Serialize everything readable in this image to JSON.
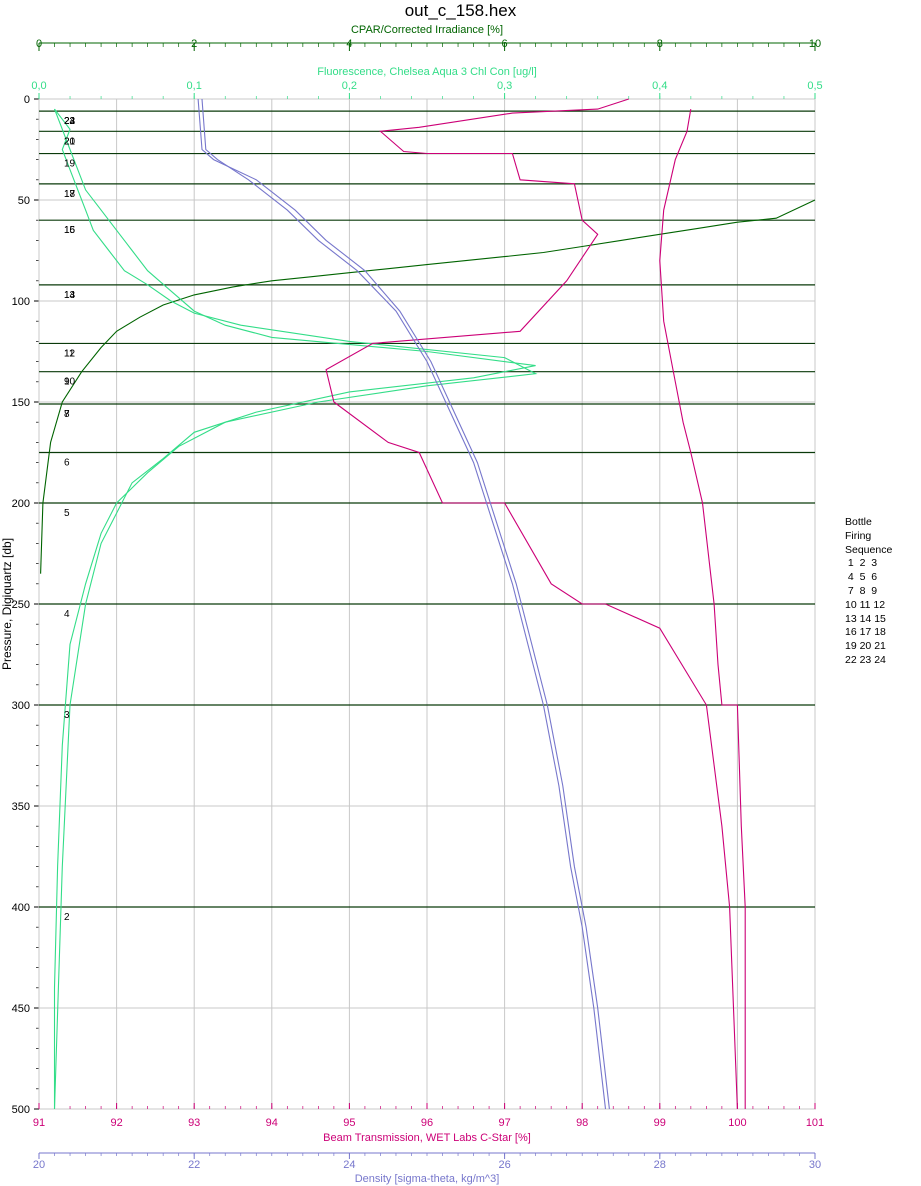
{
  "title": "out_c_158.hex",
  "chart_data": {
    "type": "line",
    "title": "out_c_158.hex",
    "ylabel": "Pressure, Digiquartz [db]",
    "ylim": [
      0,
      500
    ],
    "y_inverted": true,
    "y_ticks": [
      "0",
      "50",
      "100",
      "150",
      "200",
      "250",
      "300",
      "350",
      "400",
      "450",
      "500"
    ],
    "grid": true,
    "axes": {
      "par": {
        "label": "CPAR/Corrected Irradiance [%]",
        "position": "top",
        "range": [
          0,
          10
        ],
        "ticks": [
          "0",
          "2",
          "4",
          "6",
          "8",
          "10"
        ],
        "color": "#006400"
      },
      "fluorescence": {
        "label": "Fluorescence, Chelsea Aqua 3 Chl Con [ug/l]",
        "position": "top",
        "range": [
          0,
          0.5
        ],
        "ticks": [
          "0,0",
          "0,1",
          "0,2",
          "0,3",
          "0,4",
          "0,5"
        ],
        "color": "#33dd88"
      },
      "beam": {
        "label": "Beam Transmission, WET Labs C-Star [%]",
        "position": "bottom",
        "range": [
          91,
          101
        ],
        "ticks": [
          "91",
          "92",
          "93",
          "94",
          "95",
          "96",
          "97",
          "98",
          "99",
          "100",
          "101"
        ],
        "color": "#cc0077"
      },
      "density": {
        "label": "Density [sigma-theta, kg/m^3]",
        "position": "bottom",
        "range": [
          20,
          30
        ],
        "ticks": [
          "20",
          "22",
          "24",
          "26",
          "28",
          "30"
        ],
        "color": "#7777cc"
      }
    },
    "series": [
      {
        "axis": "par",
        "color": "#006400",
        "x": [
          10,
          9.5,
          9.0,
          8.5,
          8.0,
          7.5,
          7.0,
          6.5,
          6.0,
          5.5,
          5.0,
          4.5,
          4.0,
          3.5,
          3.0,
          2.5,
          2.0,
          1.6,
          1.3,
          1.0,
          0.8,
          0.55,
          0.3,
          0.15,
          0.05,
          0.02
        ],
        "y": [
          50,
          59,
          61,
          64,
          67,
          70,
          73,
          76,
          78,
          80,
          82,
          84,
          86,
          88,
          90,
          93,
          97,
          102,
          108,
          115,
          123,
          135,
          150,
          170,
          200,
          235
        ]
      },
      {
        "axis": "fluorescence",
        "color": "#33dd88",
        "x": [
          0.01,
          0.02,
          0.015,
          0.02,
          0.025,
          0.03,
          0.035,
          0.045,
          0.055,
          0.07,
          0.085,
          0.1,
          0.13,
          0.2,
          0.3,
          0.32,
          0.25,
          0.18,
          0.12,
          0.09,
          0.07,
          0.05,
          0.04,
          0.03,
          0.02,
          0.015,
          0.012,
          0.01,
          0.01
        ],
        "y": [
          5,
          15,
          25,
          35,
          45,
          55,
          65,
          75,
          85,
          92,
          100,
          106,
          112,
          120,
          128,
          136,
          142,
          150,
          160,
          172,
          185,
          200,
          215,
          240,
          270,
          320,
          380,
          440,
          500
        ]
      },
      {
        "axis": "fluorescence",
        "color": "#33dd88",
        "x": [
          0.01,
          0.015,
          0.02,
          0.025,
          0.03,
          0.04,
          0.05,
          0.06,
          0.07,
          0.085,
          0.1,
          0.12,
          0.15,
          0.25,
          0.32,
          0.28,
          0.2,
          0.14,
          0.1,
          0.08,
          0.06,
          0.05,
          0.04,
          0.03,
          0.02,
          0.015,
          0.01
        ],
        "y": [
          5,
          15,
          25,
          35,
          45,
          55,
          65,
          75,
          85,
          95,
          105,
          112,
          118,
          125,
          132,
          138,
          145,
          155,
          165,
          178,
          190,
          205,
          220,
          250,
          300,
          380,
          500
        ]
      },
      {
        "axis": "beam",
        "color": "#cc0077",
        "x": [
          98.6,
          98.2,
          97.1,
          95.9,
          95.4,
          95.7,
          96.0,
          97.1,
          97.2,
          97.9,
          98.0,
          98.2,
          97.8,
          97.2,
          95.3,
          94.7,
          94.8,
          95.5,
          95.9,
          96.2,
          97.0,
          97.6,
          98.0,
          98.3,
          99.0,
          99.6,
          99.8,
          99.9,
          100.0
        ],
        "y": [
          0,
          5,
          7,
          14,
          16,
          26,
          27,
          27,
          40,
          42,
          60,
          67,
          90,
          115,
          121,
          134,
          150,
          170,
          175,
          200,
          200,
          240,
          250,
          250,
          262,
          300,
          360,
          400,
          500
        ]
      },
      {
        "axis": "beam",
        "color": "#cc0077",
        "x": [
          99.4,
          99.35,
          99.2,
          99.05,
          99.0,
          99.05,
          99.2,
          99.3,
          99.4,
          99.55,
          99.7,
          99.75,
          99.8,
          100.0,
          100.05,
          100.1,
          100.1
        ],
        "y": [
          5,
          16,
          30,
          55,
          80,
          110,
          140,
          160,
          175,
          200,
          250,
          280,
          300,
          300,
          360,
          400,
          500
        ]
      },
      {
        "axis": "density",
        "color": "#7777cc",
        "x": [
          22.1,
          22.15,
          22.3,
          22.7,
          23.2,
          23.6,
          24.1,
          24.6,
          25.0,
          25.3,
          25.6,
          25.85,
          26.1,
          26.3,
          26.5,
          26.7,
          26.85,
          27.0,
          27.15,
          27.3
        ],
        "y": [
          0,
          25,
          30,
          40,
          55,
          70,
          85,
          105,
          130,
          155,
          180,
          210,
          240,
          270,
          300,
          340,
          380,
          410,
          450,
          500
        ]
      },
      {
        "axis": "density",
        "color": "#7777cc",
        "x": [
          22.05,
          22.1,
          22.25,
          22.8,
          23.3,
          23.7,
          24.2,
          24.65,
          25.05,
          25.35,
          25.65,
          25.9,
          26.15,
          26.35,
          26.55,
          26.75,
          26.9,
          27.05,
          27.2,
          27.35
        ],
        "y": [
          0,
          25,
          30,
          40,
          55,
          70,
          85,
          105,
          130,
          155,
          180,
          210,
          240,
          270,
          300,
          340,
          380,
          410,
          450,
          500
        ]
      }
    ],
    "bottle_lines": [
      6,
      16,
      27,
      42,
      60,
      92,
      121,
      135,
      151,
      175,
      200,
      250,
      300,
      400
    ],
    "bottle_labels": [
      {
        "text": "2",
        "p": 401
      },
      {
        "text": "3",
        "p": 301
      },
      {
        "text": "4",
        "p": 251
      },
      {
        "text": "5",
        "p": 201
      },
      {
        "text": "6",
        "p": 176
      },
      {
        "text": "8",
        "p": 152
      },
      {
        "text": "7",
        "p": 152
      },
      {
        "text": "9",
        "p": 136
      },
      {
        "text": "10",
        "p": 136
      },
      {
        "text": "11",
        "p": 122
      },
      {
        "text": "12",
        "p": 122
      },
      {
        "text": "13",
        "p": 93
      },
      {
        "text": "14",
        "p": 93
      },
      {
        "text": "15",
        "p": 61
      },
      {
        "text": "16",
        "p": 61
      },
      {
        "text": "17",
        "p": 43
      },
      {
        "text": "18",
        "p": 43
      },
      {
        "text": "19",
        "p": 28
      },
      {
        "text": "20",
        "p": 17
      },
      {
        "text": "21",
        "p": 17
      },
      {
        "text": "22",
        "p": 7
      },
      {
        "text": "23",
        "p": 7
      },
      {
        "text": "24",
        "p": 7
      }
    ],
    "legend": {
      "placement": "right",
      "lines": [
        "Bottle",
        "Firing",
        "Sequence",
        " 1  2  3",
        " 4  5  6",
        " 7  8  9",
        "10 11 12",
        "13 14 15",
        "16 17 18",
        "19 20 21",
        "22 23 24"
      ]
    }
  }
}
